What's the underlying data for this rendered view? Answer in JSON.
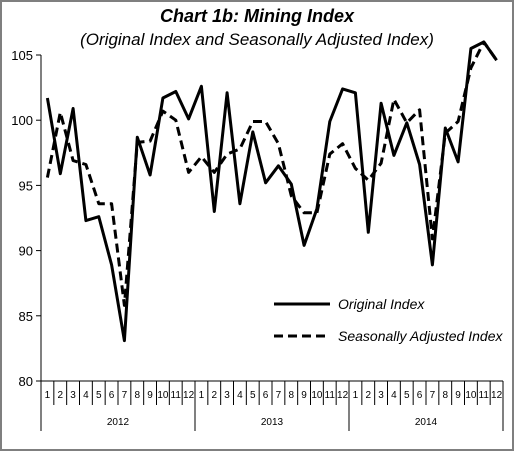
{
  "chart_data": {
    "type": "line",
    "title": "Chart 1b: Mining Index",
    "subtitle": "(Original Index and Seasonally Adjusted Index)",
    "xlabel": "",
    "ylabel": "",
    "ylim": [
      80,
      105
    ],
    "yticks": [
      "80",
      "85",
      "90",
      "95",
      "100",
      "105"
    ],
    "grid": false,
    "legend_position": "bottom-right",
    "months": [
      "1",
      "2",
      "3",
      "4",
      "5",
      "6",
      "7",
      "8",
      "9",
      "10",
      "11",
      "12",
      "1",
      "2",
      "3",
      "4",
      "5",
      "6",
      "7",
      "8",
      "9",
      "10",
      "11",
      "12",
      "1",
      "2",
      "3",
      "4",
      "5",
      "6",
      "7",
      "8",
      "9",
      "10",
      "11",
      "12"
    ],
    "years": [
      "2012",
      "2013",
      "2014"
    ],
    "series": [
      {
        "name": "Original Index",
        "style": "solid",
        "color": "#000000",
        "values": [
          101.7,
          95.9,
          100.9,
          92.3,
          92.6,
          88.9,
          83.1,
          98.7,
          95.8,
          101.7,
          102.2,
          100.1,
          102.6,
          93.0,
          102.1,
          93.6,
          99.1,
          95.2,
          96.5,
          95.1,
          90.4,
          93.2,
          99.9,
          102.4,
          102.1,
          91.4,
          101.3,
          97.3,
          99.8,
          96.6,
          88.9,
          99.4,
          96.8,
          105.5,
          106.0,
          104.6
        ]
      },
      {
        "name": "Seasonally Adjusted Index",
        "style": "dashed",
        "color": "#000000",
        "values": [
          95.6,
          100.6,
          96.9,
          96.6,
          93.6,
          93.6,
          85.8,
          98.3,
          98.4,
          100.7,
          100.0,
          96.0,
          97.2,
          96.0,
          97.4,
          97.8,
          99.9,
          99.9,
          98.2,
          94.2,
          92.9,
          92.9,
          97.4,
          98.2,
          96.3,
          95.4,
          96.7,
          101.6,
          99.8,
          100.8,
          90.9,
          99.0,
          99.9,
          104.0,
          106.0,
          104.6
        ]
      }
    ]
  }
}
